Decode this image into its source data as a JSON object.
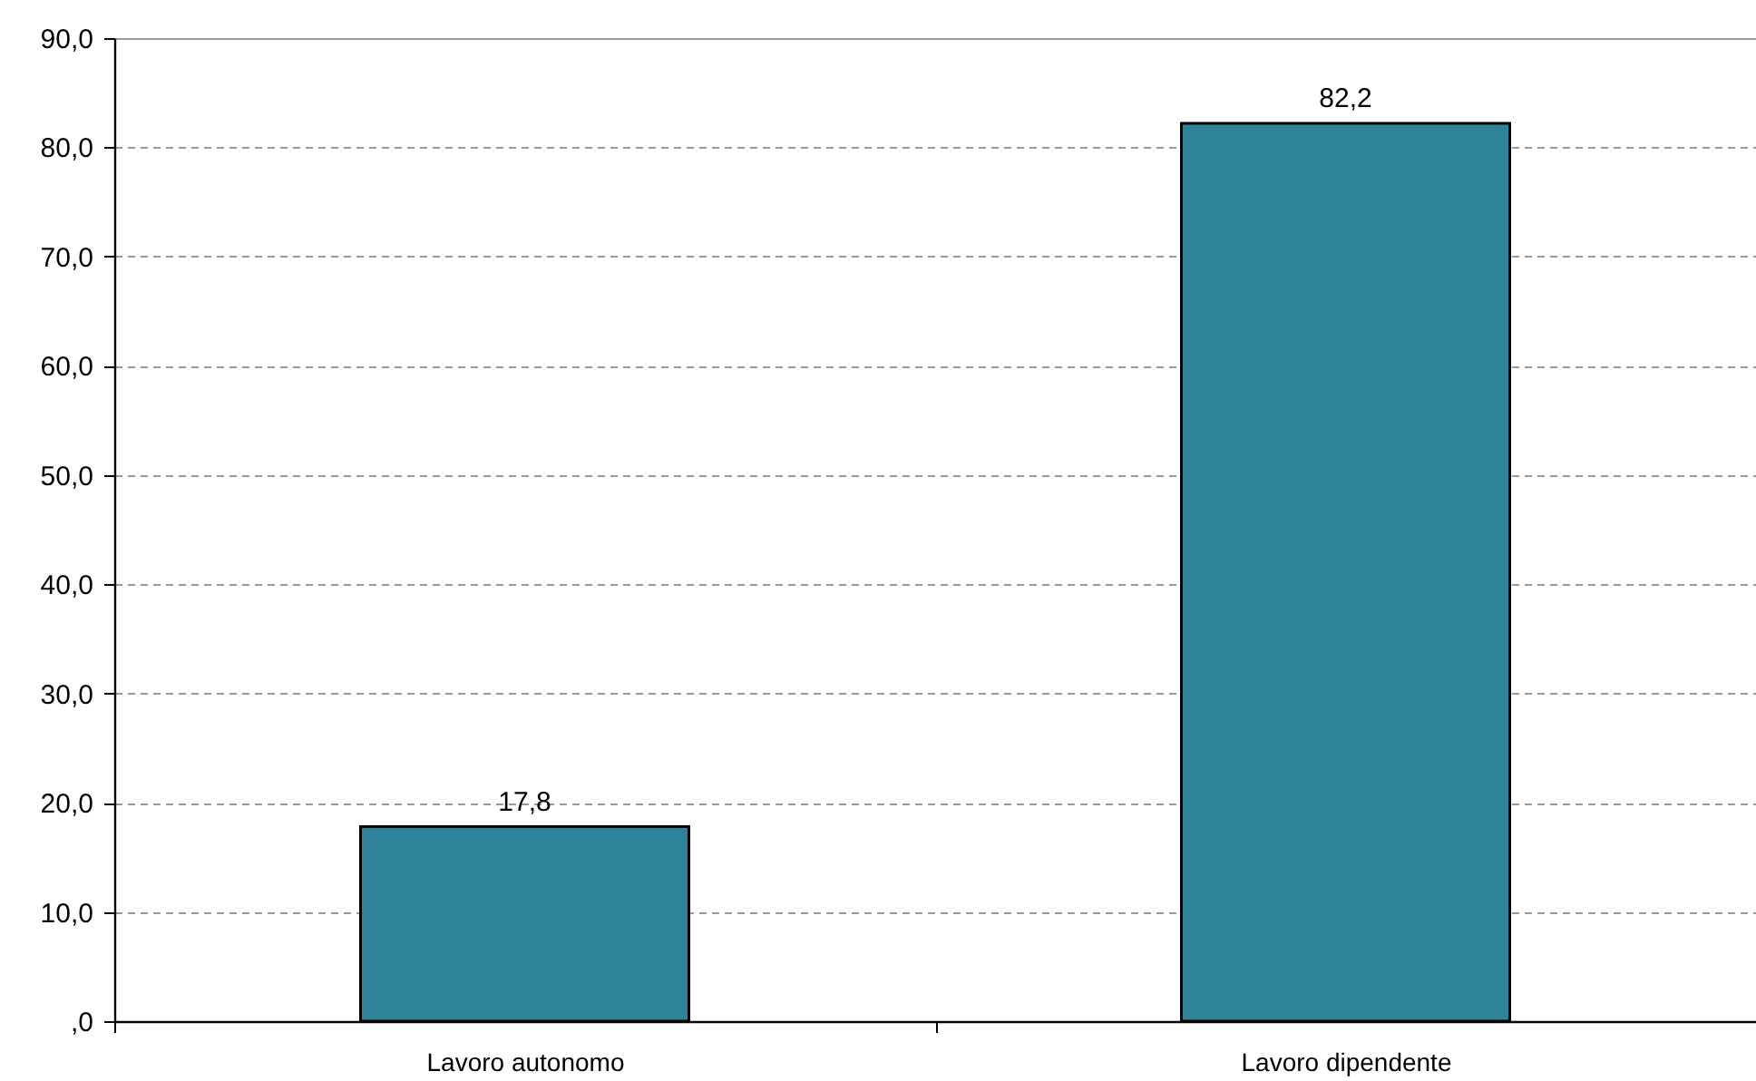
{
  "chart_data": {
    "type": "bar",
    "categories": [
      "Lavoro autonomo",
      "Lavoro dipendente"
    ],
    "values": [
      17.8,
      82.2
    ],
    "color": "#2e8299",
    "value_labels": [
      "17,8",
      "82,2"
    ],
    "ylim": [
      0,
      90
    ],
    "yticks": [
      {
        "value": 0,
        "label": ",0"
      },
      {
        "value": 10,
        "label": "10,0"
      },
      {
        "value": 20,
        "label": "20,0"
      },
      {
        "value": 30,
        "label": "30,0"
      },
      {
        "value": 40,
        "label": "40,0"
      },
      {
        "value": 50,
        "label": "50,0"
      },
      {
        "value": 60,
        "label": "60,0"
      },
      {
        "value": 70,
        "label": "70,0"
      },
      {
        "value": 80,
        "label": "80,0"
      },
      {
        "value": 90,
        "label": "90,0"
      }
    ],
    "grid": "y"
  }
}
